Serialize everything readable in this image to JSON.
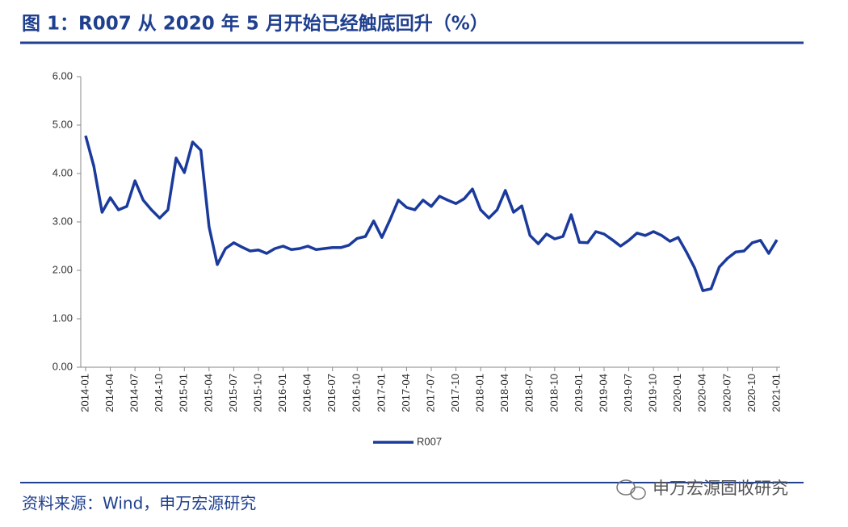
{
  "chart_data": {
    "type": "line",
    "title": "图 1：R007 从 2020 年 5 月开始已经触底回升（%）",
    "source": "资料来源：Wind，申万宏源研究",
    "watermark": "申万宏源固收研究",
    "categories": [
      "2014-01",
      null,
      null,
      "2014-04",
      null,
      null,
      "2014-07",
      null,
      null,
      "2014-10",
      null,
      null,
      "2015-01",
      null,
      null,
      "2015-04",
      null,
      null,
      "2015-07",
      null,
      null,
      "2015-10",
      null,
      null,
      "2016-01",
      null,
      null,
      "2016-04",
      null,
      null,
      "2016-07",
      null,
      null,
      "2016-10",
      null,
      null,
      "2017-01",
      null,
      null,
      "2017-04",
      null,
      null,
      "2017-07",
      null,
      null,
      "2017-10",
      null,
      null,
      "2018-01",
      null,
      null,
      "2018-04",
      null,
      null,
      "2018-07",
      null,
      null,
      "2018-10",
      null,
      null,
      "2019-01",
      null,
      null,
      "2019-04",
      null,
      null,
      "2019-07",
      null,
      null,
      "2019-10",
      null,
      null,
      "2020-01",
      null,
      null,
      "2020-04",
      null,
      null,
      "2020-07",
      null,
      null,
      "2020-10",
      null,
      null,
      "2021-01"
    ],
    "series": [
      {
        "name": "R007",
        "color": "#1a3a9c",
        "values": [
          4.78,
          4.15,
          3.2,
          3.5,
          3.25,
          3.32,
          3.85,
          3.45,
          3.25,
          3.08,
          3.25,
          4.32,
          4.02,
          4.65,
          4.48,
          2.9,
          2.12,
          2.45,
          2.57,
          2.48,
          2.4,
          2.42,
          2.35,
          2.45,
          2.5,
          2.43,
          2.45,
          2.5,
          2.43,
          2.45,
          2.47,
          2.47,
          2.52,
          2.66,
          2.7,
          3.02,
          2.68,
          3.05,
          3.45,
          3.3,
          3.25,
          3.45,
          3.32,
          3.53,
          3.45,
          3.38,
          3.48,
          3.68,
          3.25,
          3.08,
          3.25,
          3.65,
          3.2,
          3.33,
          2.72,
          2.55,
          2.75,
          2.65,
          2.7,
          3.15,
          2.58,
          2.57,
          2.8,
          2.75,
          2.63,
          2.5,
          2.62,
          2.77,
          2.72,
          2.8,
          2.72,
          2.6,
          2.68,
          2.38,
          2.05,
          1.58,
          1.62,
          2.07,
          2.25,
          2.38,
          2.4,
          2.57,
          2.62,
          2.35,
          2.63
        ]
      }
    ],
    "ylim": [
      0,
      6
    ],
    "yticks": [
      {
        "value": 0,
        "label": "0.00"
      },
      {
        "value": 1,
        "label": "1.00"
      },
      {
        "value": 2,
        "label": "2.00"
      },
      {
        "value": 3,
        "label": "3.00"
      },
      {
        "value": 4,
        "label": "4.00"
      },
      {
        "value": 5,
        "label": "5.00"
      },
      {
        "value": 6,
        "label": "6.00"
      }
    ],
    "grid": false,
    "legend": "bottom"
  }
}
